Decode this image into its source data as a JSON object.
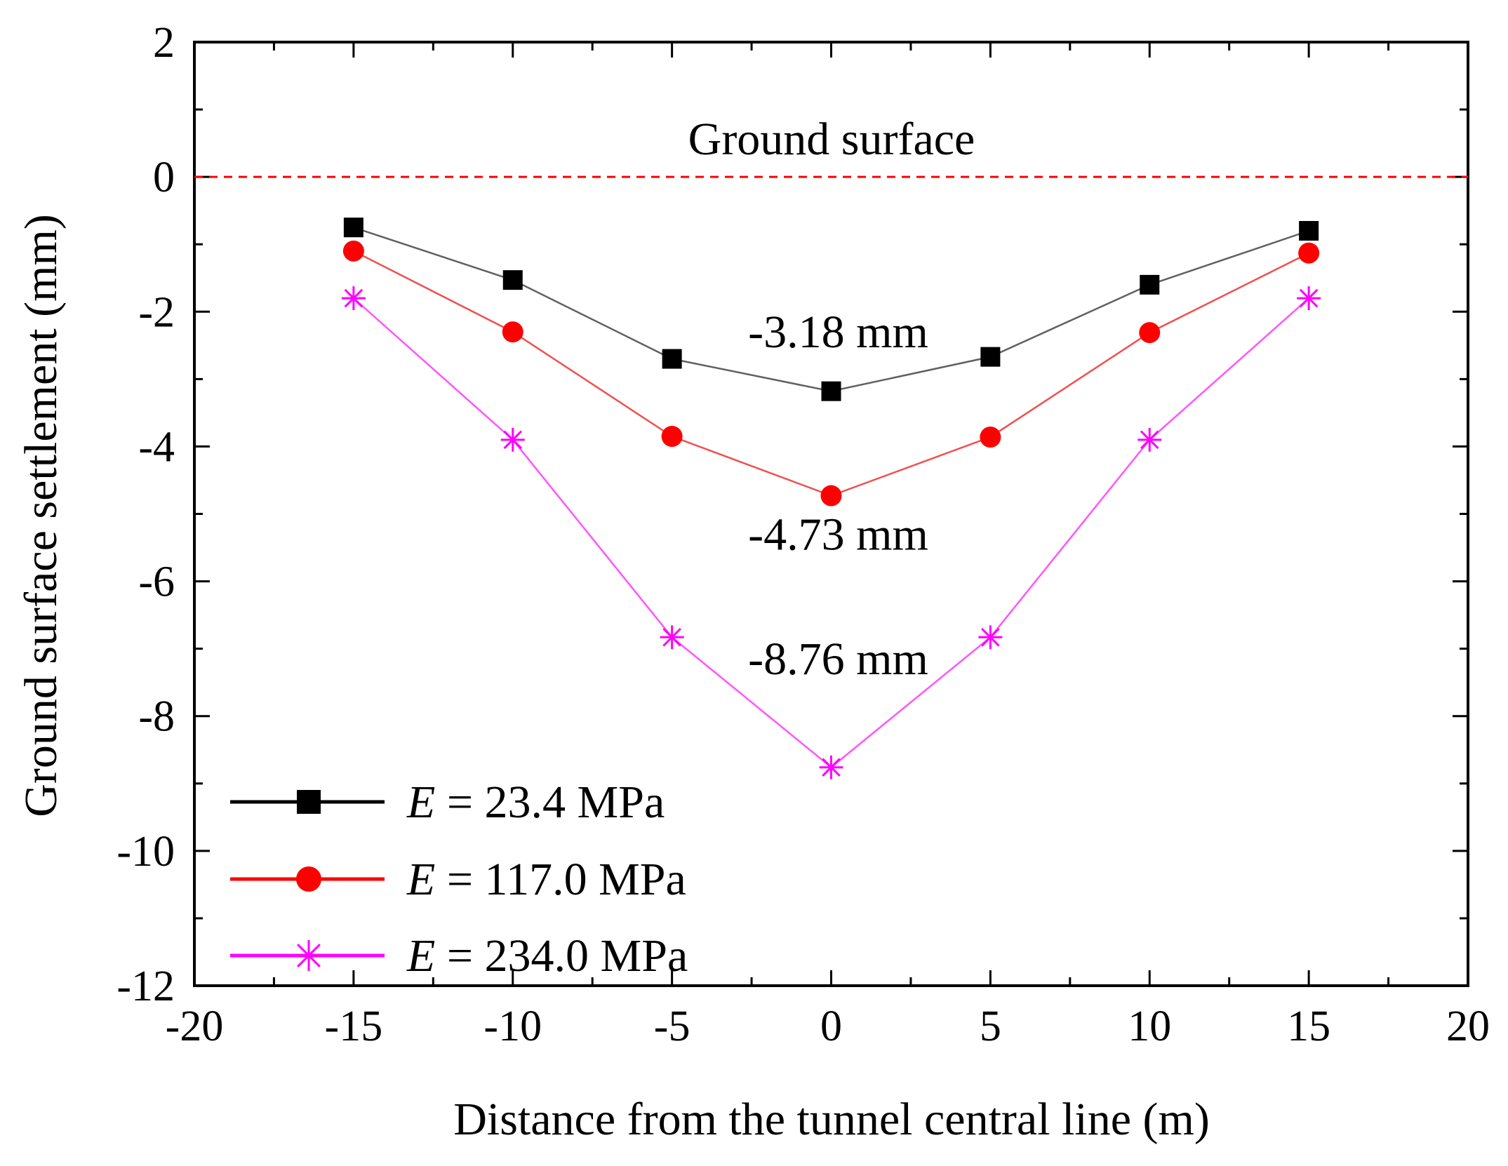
{
  "chart_data": {
    "type": "line",
    "xlabel": "Distance from the tunnel central line (m)",
    "ylabel": "Ground surface settlement (mm)",
    "xlim": [
      -20,
      20
    ],
    "ylim": [
      -12,
      2
    ],
    "xticks": [
      -20,
      -15,
      -10,
      -5,
      0,
      5,
      10,
      15,
      20
    ],
    "yticks": [
      2,
      0,
      -2,
      -4,
      -6,
      -8,
      -10,
      -12
    ],
    "grid": false,
    "legend_position": "bottom-left",
    "reference_line": {
      "y": 0,
      "label": "Ground surface",
      "color": "#ff0000",
      "style": "dashed"
    },
    "series": [
      {
        "legend_prefix": "E",
        "legend_value": "= 23.4 MPa",
        "color": "#000000",
        "line_color": "#606060",
        "marker": "square",
        "x": [
          -15,
          -10,
          -5,
          0,
          5,
          10,
          15
        ],
        "y": [
          -0.75,
          -1.53,
          -2.7,
          -3.18,
          -2.67,
          -1.6,
          -0.8
        ],
        "annotation": "-3.18 mm"
      },
      {
        "legend_prefix": "E",
        "legend_value": "= 117.0 MPa",
        "color": "#ff0000",
        "line_color": "#f05050",
        "marker": "circle",
        "x": [
          -15,
          -10,
          -5,
          0,
          5,
          10,
          15
        ],
        "y": [
          -1.1,
          -2.3,
          -3.85,
          -4.73,
          -3.86,
          -2.31,
          -1.13
        ],
        "annotation": "-4.73 mm"
      },
      {
        "legend_prefix": "E",
        "legend_value": "= 234.0 MPa",
        "color": "#ff00ff",
        "line_color": "#ff55ff",
        "marker": "star",
        "x": [
          -15,
          -10,
          -5,
          0,
          5,
          10,
          15
        ],
        "y": [
          -1.8,
          -3.9,
          -6.83,
          -8.76,
          -6.83,
          -3.9,
          -1.8
        ],
        "annotation": "-8.76 mm"
      }
    ]
  }
}
